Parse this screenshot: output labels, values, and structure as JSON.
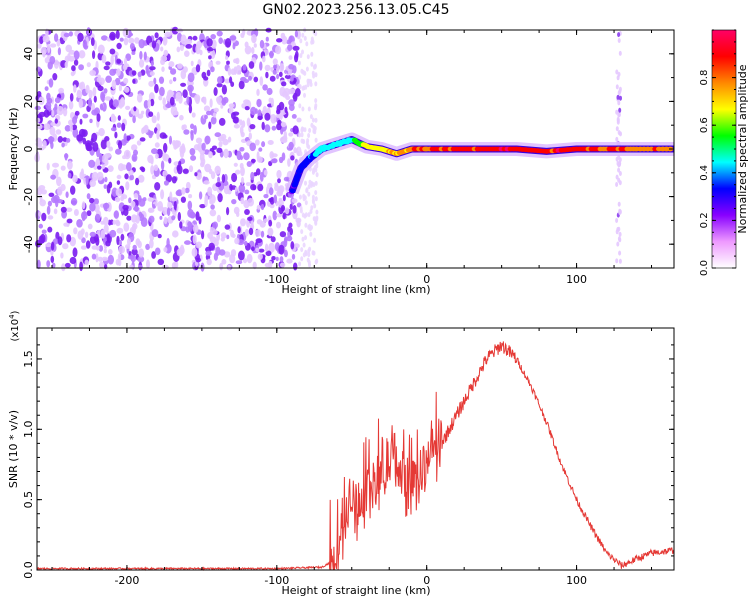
{
  "figure": {
    "title": "GN02.2023.256.13.05.C45"
  },
  "chart_data": [
    {
      "type": "heatmap",
      "xlabel": "Height of straight line (km)",
      "ylabel": "Frequency (Hz)",
      "xlim": [
        -260,
        165
      ],
      "ylim": [
        -50,
        50
      ],
      "x_ticks": [
        -200,
        -100,
        0,
        100
      ],
      "x_tick_labels": [
        "-200",
        "-100",
        "0",
        "100"
      ],
      "y_ticks": [
        -40,
        -20,
        0,
        20,
        40
      ],
      "y_tick_labels": [
        "-40",
        "-20",
        "0",
        "20",
        "40"
      ],
      "colorbar": {
        "label": "Normalized spectral amplitude",
        "range": [
          0,
          1
        ],
        "ticks": [
          0.0,
          0.2,
          0.4,
          0.6,
          0.8
        ],
        "tick_labels": [
          "0.0",
          "0.2",
          "0.4",
          "0.6",
          "0.8"
        ],
        "colormap": [
          "#ffffff",
          "#ee99ff",
          "#8800ff",
          "#0000ff",
          "#00ffff",
          "#00ff00",
          "#ffff00",
          "#ff8800",
          "#ff0000",
          "#ff0066"
        ]
      },
      "noise_region": {
        "x": [
          -260,
          -85
        ],
        "y": [
          -50,
          50
        ],
        "amplitude": 0.15
      },
      "signal_trace": [
        {
          "x": -90,
          "y": -18,
          "amplitude": 0.3
        },
        {
          "x": -84,
          "y": -8,
          "amplitude": 0.35
        },
        {
          "x": -78,
          "y": -4,
          "amplitude": 0.4
        },
        {
          "x": -70,
          "y": 0,
          "amplitude": 0.45
        },
        {
          "x": -60,
          "y": 2,
          "amplitude": 0.5
        },
        {
          "x": -50,
          "y": 4,
          "amplitude": 0.5
        },
        {
          "x": -40,
          "y": 1,
          "amplitude": 0.7
        },
        {
          "x": -30,
          "y": 0,
          "amplitude": 0.75
        },
        {
          "x": -20,
          "y": -2,
          "amplitude": 0.8
        },
        {
          "x": -10,
          "y": 0,
          "amplitude": 0.85
        },
        {
          "x": 0,
          "y": 0,
          "amplitude": 0.9
        },
        {
          "x": 20,
          "y": 0,
          "amplitude": 0.95
        },
        {
          "x": 40,
          "y": 0,
          "amplitude": 0.95
        },
        {
          "x": 60,
          "y": 0,
          "amplitude": 1.0
        },
        {
          "x": 80,
          "y": -1,
          "amplitude": 0.95
        },
        {
          "x": 100,
          "y": 0,
          "amplitude": 0.95
        },
        {
          "x": 120,
          "y": 0,
          "amplitude": 0.9
        },
        {
          "x": 140,
          "y": 0,
          "amplitude": 0.85
        },
        {
          "x": 165,
          "y": 0,
          "amplitude": 0.85
        }
      ],
      "vertical_artifact": {
        "x": 128,
        "y": [
          -50,
          50
        ],
        "amplitude": 0.1
      },
      "grid": false
    },
    {
      "type": "line",
      "xlabel": "Height of straight line (km)",
      "ylabel": "SNR (10 * v/v)",
      "y_multiplier": "(x10",
      "y_multiplier_exp": "4",
      "y_multiplier_close": ")",
      "xlim": [
        -260,
        165
      ],
      "ylim": [
        0,
        1.72
      ],
      "x_ticks": [
        -200,
        -100,
        0,
        100
      ],
      "x_tick_labels": [
        "-200",
        "-100",
        "0",
        "100"
      ],
      "y_ticks": [
        0.0,
        0.5,
        1.0,
        1.5
      ],
      "y_tick_labels": [
        "0.0",
        "0.5",
        "1.0",
        "1.5"
      ],
      "series": [
        {
          "color": "#e53935",
          "x": [
            -260,
            -200,
            -100,
            -70,
            -60,
            -55,
            -50,
            -45,
            -40,
            -35,
            -30,
            -25,
            -20,
            -15,
            -10,
            -5,
            0,
            5,
            10,
            15,
            20,
            25,
            30,
            35,
            40,
            45,
            50,
            55,
            60,
            70,
            80,
            90,
            100,
            110,
            120,
            130,
            140,
            150,
            165
          ],
          "y": [
            0.01,
            0.01,
            0.01,
            0.02,
            0.08,
            0.4,
            0.5,
            0.45,
            0.6,
            0.55,
            0.7,
            0.75,
            0.8,
            0.6,
            0.7,
            0.65,
            0.8,
            0.85,
            0.9,
            1.0,
            1.1,
            1.2,
            1.3,
            1.4,
            1.5,
            1.55,
            1.6,
            1.55,
            1.5,
            1.3,
            1.05,
            0.75,
            0.5,
            0.3,
            0.12,
            0.03,
            0.08,
            0.12,
            0.14
          ]
        }
      ],
      "grid": false
    }
  ]
}
